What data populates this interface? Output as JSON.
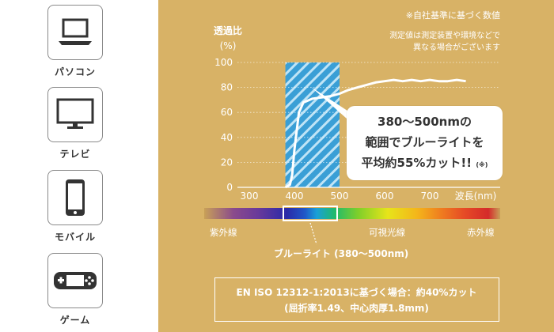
{
  "devices": [
    {
      "label": "パソコン",
      "icon": "laptop-icon"
    },
    {
      "label": "テレビ",
      "icon": "tv-icon"
    },
    {
      "label": "モバイル",
      "icon": "smartphone-icon"
    },
    {
      "label": "ゲーム",
      "icon": "game-console-icon"
    }
  ],
  "notes": {
    "top": "※自社基準に基づく数値",
    "line2": "測定値は測定装置や環境などで",
    "line3": "異なる場合がございます"
  },
  "callout": {
    "line1": "380～500nmの",
    "line2": "範囲でブルーライトを",
    "line3": "平均約55%カット!!",
    "mark": "(※)"
  },
  "spectrum": {
    "left_label": "紫外線",
    "center_label": "可視光線",
    "right_label": "赤外線",
    "blue_label": "ブルーライト (380～500nm)"
  },
  "info": {
    "line1": "EN ISO 12312-1:2013に基づく場合：約40%カット",
    "line2": "(屈折率1.49、中心肉厚1.8mm)"
  },
  "colors": {
    "background": "#d8b266",
    "highlight": "#3a9fd6",
    "curve": "#ffffff"
  },
  "chart_data": {
    "type": "line",
    "ylabel": "透過比",
    "ylabel_unit": "(%)",
    "xlabel": "波長(nm)",
    "xlim": [
      300,
      800
    ],
    "ylim": [
      0,
      100
    ],
    "x_ticks": [
      300,
      400,
      500,
      600,
      700
    ],
    "y_ticks": [
      0,
      20,
      40,
      60,
      80,
      100
    ],
    "highlight_range": [
      380,
      500
    ],
    "series": [
      {
        "x": [
          380,
          390,
          395,
          400,
          410,
          420,
          440,
          460,
          480,
          500,
          520,
          540,
          560,
          580,
          600,
          620,
          640,
          660,
          680,
          700,
          720,
          740,
          760,
          780
        ],
        "y": [
          0,
          2,
          10,
          30,
          60,
          68,
          71,
          72,
          73,
          75,
          78,
          80,
          82,
          84,
          85,
          86,
          85,
          86,
          85,
          86,
          85,
          85,
          86,
          85
        ]
      }
    ]
  }
}
